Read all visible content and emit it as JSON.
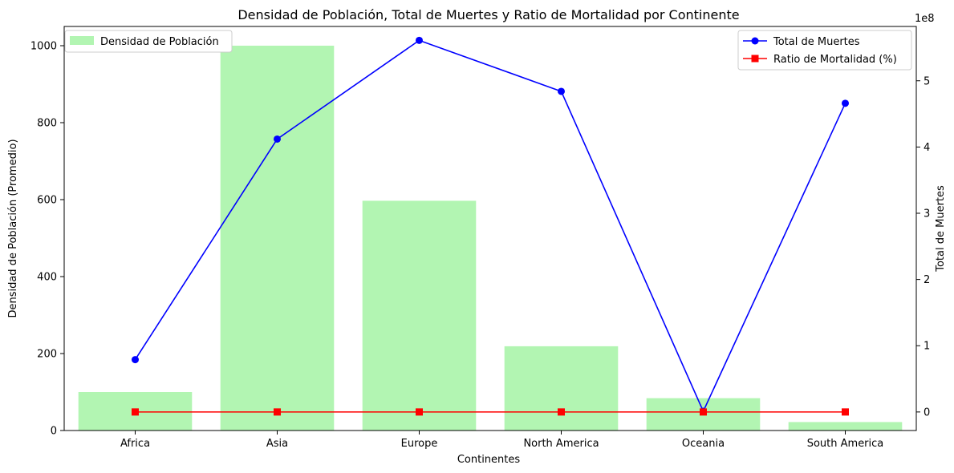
{
  "chart_data": {
    "type": "bar+line",
    "title": "Densidad de Población, Total de Muertes y Ratio de Mortalidad por Continente",
    "xlabel": "Continentes",
    "ylabel_left": "Densidad de Población (Promedio)",
    "ylabel_right": "Total de Muertes",
    "right_axis_offset_label": "1e8",
    "categories": [
      "Africa",
      "Asia",
      "Europe",
      "North America",
      "Oceania",
      "South America"
    ],
    "left_axis": {
      "ylim": [
        0,
        1050
      ],
      "ticks": [
        "0",
        "200",
        "400",
        "600",
        "800",
        "1000"
      ]
    },
    "right_axis": {
      "ylim": [
        -0.28,
        5.82
      ],
      "ticks": [
        "0",
        "1",
        "2",
        "3",
        "4",
        "5"
      ]
    },
    "bars": {
      "name": "Densidad de Población",
      "color": "#b2f5b2",
      "values": [
        100,
        1000,
        597,
        219,
        84,
        22
      ]
    },
    "lines": [
      {
        "name": "Total de Muertes",
        "color": "#0000ff",
        "marker": "circle",
        "axis": "right",
        "values": [
          0.79,
          4.12,
          5.61,
          4.84,
          0.01,
          4.66
        ]
      },
      {
        "name": "Ratio de Mortalidad (%)",
        "color": "#ff0000",
        "marker": "square",
        "axis": "right",
        "values": [
          0.0,
          0.0,
          0.0,
          0.0,
          0.0,
          0.0
        ]
      }
    ],
    "legend_left_placement": "upper-left",
    "legend_right_placement": "upper-right",
    "grid": false
  }
}
